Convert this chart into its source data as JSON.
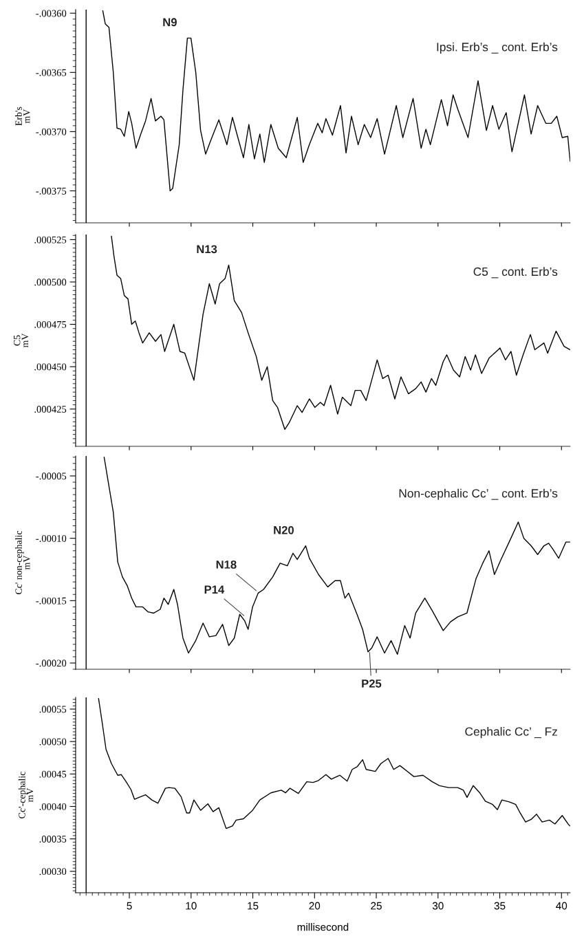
{
  "chart_data": [
    {
      "type": "line",
      "title": "Ipsi. Erb’s _ cont. Erb’s",
      "ylabel": "Erb's\nmV",
      "xlim": [
        0.65,
        40.7
      ],
      "xticks": [
        5,
        10,
        15,
        20,
        25,
        30,
        35,
        40
      ],
      "tick_labels": "y",
      "ylim": [
        -0.003777,
        -0.003597
      ],
      "yticks": [
        {
          "value": -0.0036,
          "label": "-.00360"
        },
        {
          "value": -0.00365,
          "label": "-.00365"
        },
        {
          "value": -0.0037,
          "label": "-.00370"
        },
        {
          "value": -0.00375,
          "label": "-.00375"
        }
      ],
      "annotations": [
        {
          "text": "N9",
          "x": 9.8,
          "y": -0.003621
        }
      ],
      "x": [
        1.5,
        1.5,
        2.0,
        2.85,
        3.05,
        3.35,
        3.7,
        4.0,
        4.3,
        4.59,
        4.95,
        5.19,
        5.54,
        5.93,
        6.31,
        6.76,
        7.11,
        7.56,
        7.8,
        8.3,
        8.51,
        9.04,
        9.34,
        9.7,
        9.99,
        10.38,
        10.77,
        11.18,
        11.57,
        12.25,
        12.9,
        13.35,
        13.79,
        14.24,
        14.68,
        15.13,
        15.57,
        15.93,
        16.46,
        17.06,
        17.71,
        18.6,
        19.08,
        19.58,
        20.26,
        20.62,
        20.92,
        21.45,
        22.1,
        22.55,
        22.99,
        23.53,
        24.03,
        24.54,
        25.07,
        25.67,
        26.62,
        27.15,
        27.98,
        28.63,
        29.02,
        29.38,
        30.27,
        30.77,
        31.22,
        31.6,
        32.43,
        33.24,
        33.92,
        34.42,
        34.93,
        35.52,
        35.99,
        37.0,
        37.54,
        38.07,
        38.73,
        39.17,
        39.62,
        40.06,
        40.51,
        40.7
      ],
      "series": [
        {
          "color": "#000000",
          "values": [
            -0.003777,
            -0.003597,
            null,
            -0.003598,
            -0.003609,
            -0.003612,
            -0.00365,
            -0.003697,
            -0.003698,
            -0.003704,
            -0.003683,
            -0.003693,
            -0.003714,
            -0.003702,
            -0.003691,
            -0.003672,
            -0.003691,
            -0.003687,
            -0.00369,
            -0.00375,
            -0.003748,
            -0.003711,
            -0.003665,
            -0.003621,
            -0.003621,
            -0.00365,
            -0.003699,
            -0.003719,
            -0.003708,
            -0.00369,
            -0.003711,
            -0.003688,
            -0.003705,
            -0.003722,
            -0.003694,
            -0.003723,
            -0.003702,
            -0.003726,
            -0.003694,
            -0.003714,
            -0.003722,
            -0.003688,
            -0.003726,
            -0.003711,
            -0.003693,
            -0.003701,
            -0.003689,
            -0.003703,
            -0.003678,
            -0.003718,
            -0.003687,
            -0.003711,
            -0.003694,
            -0.003705,
            -0.003689,
            -0.003719,
            -0.003678,
            -0.003705,
            -0.003672,
            -0.003714,
            -0.003698,
            -0.003711,
            -0.003673,
            -0.003695,
            -0.003669,
            -0.003681,
            -0.003705,
            -0.003657,
            -0.003699,
            -0.003678,
            -0.003698,
            -0.003684,
            -0.003717,
            -0.003669,
            -0.003702,
            -0.003678,
            -0.003693,
            -0.003693,
            -0.003687,
            -0.003705,
            -0.003704,
            -0.003725
          ]
        }
      ]
    },
    {
      "type": "line",
      "title": "C5 _ cont. Erb’s",
      "ylabel": "C5\nmV",
      "xlim": [
        0.65,
        40.7
      ],
      "xticks": [
        5,
        10,
        15,
        20,
        25,
        30,
        35,
        40
      ],
      "tick_labels": "y",
      "ylim": [
        0.000403,
        0.000528
      ],
      "yticks": [
        {
          "value": 0.000425,
          "label": ".000425"
        },
        {
          "value": 0.00045,
          "label": ".000450"
        },
        {
          "value": 0.000475,
          "label": ".000475"
        },
        {
          "value": 0.0005,
          "label": ".000500"
        },
        {
          "value": 0.000525,
          "label": ".000525"
        }
      ],
      "annotations": [
        {
          "text": "N13",
          "x": 13.05,
          "y": 0.00051
        }
      ],
      "x": [
        1.5,
        1.5,
        2.0,
        3.55,
        3.76,
        4.0,
        4.3,
        4.59,
        4.89,
        5.19,
        5.48,
        5.78,
        6.08,
        6.61,
        7.12,
        7.56,
        7.86,
        8.6,
        9.1,
        9.49,
        10.23,
        10.97,
        11.48,
        11.95,
        12.31,
        12.75,
        13.05,
        13.5,
        14.09,
        14.62,
        15.28,
        15.72,
        16.17,
        16.61,
        17.0,
        17.59,
        17.95,
        18.6,
        18.99,
        19.58,
        20.03,
        20.47,
        20.77,
        21.3,
        21.87,
        22.25,
        22.94,
        23.29,
        23.74,
        24.18,
        25.07,
        25.52,
        25.96,
        26.5,
        27.0,
        27.6,
        28.19,
        28.63,
        29.02,
        29.47,
        29.82,
        30.42,
        30.71,
        31.25,
        31.75,
        32.2,
        32.64,
        33.03,
        33.53,
        34.13,
        35.02,
        35.46,
        35.91,
        36.35,
        36.89,
        37.48,
        37.84,
        38.58,
        38.88,
        39.56,
        40.21,
        40.7
      ],
      "series": [
        {
          "color": "#000000",
          "values": [
            0.000403,
            0.000528,
            null,
            0.000527,
            0.000515,
            0.000504,
            0.000502,
            0.000492,
            0.00049,
            0.000475,
            0.000477,
            0.00047,
            0.000464,
            0.00047,
            0.000465,
            0.000469,
            0.000459,
            0.000475,
            0.000459,
            0.000458,
            0.000442,
            0.000481,
            0.000499,
            0.000487,
            0.000499,
            0.000502,
            0.00051,
            0.000489,
            0.000482,
            0.00047,
            0.000456,
            0.000442,
            0.00045,
            0.00043,
            0.000426,
            0.000413,
            0.000417,
            0.000427,
            0.000423,
            0.000431,
            0.000426,
            0.000429,
            0.000427,
            0.000439,
            0.000422,
            0.000432,
            0.000427,
            0.000436,
            0.000436,
            0.00043,
            0.000454,
            0.000443,
            0.000445,
            0.000431,
            0.000444,
            0.000434,
            0.000437,
            0.000441,
            0.000435,
            0.000443,
            0.000439,
            0.000453,
            0.000457,
            0.000448,
            0.000444,
            0.000456,
            0.000448,
            0.000457,
            0.000446,
            0.000455,
            0.000461,
            0.000454,
            0.000459,
            0.000445,
            0.000457,
            0.000469,
            0.00046,
            0.000464,
            0.000458,
            0.000471,
            0.000462,
            0.00046
          ]
        }
      ]
    },
    {
      "type": "line",
      "title": "Non-cephalic Cc’ _ cont. Erb’s",
      "ylabel": "Cc' non-cephalic\nmV",
      "xlim": [
        0.65,
        40.7
      ],
      "xticks": [
        5,
        10,
        15,
        20,
        25,
        30,
        35,
        40
      ],
      "tick_labels": "y",
      "ylim": [
        -0.000205,
        -3.4e-05
      ],
      "yticks": [
        {
          "value": -0.0002,
          "label": "-.00020"
        },
        {
          "value": -0.00015,
          "label": "-.00015"
        },
        {
          "value": -0.0001,
          "label": "-.00010"
        },
        {
          "value": -5e-05,
          "label": "-.00005"
        }
      ],
      "annotations": [
        {
          "text": "P14",
          "x": 14.4,
          "y": -0.000163
        },
        {
          "text": "N18",
          "x": 15.4,
          "y": -0.000143
        },
        {
          "text": "N20",
          "x": 19.28,
          "y": -0.0001062
        },
        {
          "text": "P25",
          "x": 24.45,
          "y": -0.00019
        }
      ],
      "x": [
        1.5,
        1.5,
        2.0,
        2.96,
        3.26,
        3.7,
        4.06,
        4.44,
        4.83,
        5.19,
        5.54,
        6.08,
        6.52,
        6.97,
        7.5,
        7.8,
        8.15,
        8.6,
        8.9,
        9.34,
        9.79,
        10.38,
        10.97,
        11.48,
        12.01,
        12.55,
        13.05,
        13.5,
        13.94,
        14.33,
        14.62,
        14.98,
        15.43,
        15.87,
        16.61,
        17.21,
        17.8,
        18.25,
        18.6,
        19.28,
        19.58,
        20.32,
        21.07,
        21.66,
        22.1,
        22.46,
        22.76,
        23.44,
        23.89,
        24.33,
        24.63,
        25.07,
        25.67,
        26.2,
        26.71,
        27.3,
        27.74,
        28.19,
        28.93,
        29.53,
        30.42,
        31.01,
        31.6,
        32.34,
        33.09,
        33.62,
        34.13,
        34.57,
        35.1,
        35.76,
        36.5,
        36.95,
        37.54,
        38.07,
        38.58,
        38.96,
        39.32,
        39.77,
        40.36,
        40.7
      ],
      "series": [
        {
          "color": "#000000",
          "values": [
            -0.000205,
            -3.4e-05,
            null,
            -3.5e-05,
            -5.3e-05,
            -7.9e-05,
            -0.000119,
            -0.000131,
            -0.000138,
            -0.000148,
            -0.000155,
            -0.000155,
            -0.000159,
            -0.00016,
            -0.000157,
            -0.000148,
            -0.000153,
            -0.000141,
            -0.000153,
            -0.00018,
            -0.000192,
            -0.000182,
            -0.000168,
            -0.000179,
            -0.000178,
            -0.000169,
            -0.000186,
            -0.00018,
            -0.000161,
            -0.000166,
            -0.000173,
            -0.000155,
            -0.000144,
            -0.000141,
            -0.000131,
            -0.00012,
            -0.000122,
            -0.000112,
            -0.000117,
            -0.000106,
            -0.000116,
            -0.000129,
            -0.000139,
            -0.000134,
            -0.000134,
            -0.000148,
            -0.000144,
            -0.000161,
            -0.000173,
            -0.000191,
            -0.000188,
            -0.000179,
            -0.000192,
            -0.000182,
            -0.000193,
            -0.00017,
            -0.00018,
            -0.00016,
            -0.000148,
            -0.000158,
            -0.000174,
            -0.000167,
            -0.000163,
            -0.00016,
            -0.000132,
            -0.00012,
            -0.00011,
            -0.000129,
            -0.000117,
            -0.000103,
            -8.7e-05,
            -0.0001,
            -0.000106,
            -0.000113,
            -0.000106,
            -0.000104,
            -0.000109,
            -0.000116,
            -0.000103,
            -0.000103
          ]
        }
      ]
    },
    {
      "type": "line",
      "title": "Cephalic Cc’ _ Fz",
      "ylabel": "Cc'-cephalic\nmV",
      "xlabel": "millisecond",
      "xlim": [
        0.65,
        40.7
      ],
      "xticks": [
        5,
        10,
        15,
        20,
        25,
        30,
        35,
        40
      ],
      "ylim": [
        0.000267,
        0.000568
      ],
      "yticks": [
        {
          "value": 0.0003,
          "label": ".00030"
        },
        {
          "value": 0.00035,
          "label": ".00035"
        },
        {
          "value": 0.0004,
          "label": ".00040"
        },
        {
          "value": 0.00045,
          "label": ".00045"
        },
        {
          "value": 0.0005,
          "label": ".00050"
        },
        {
          "value": 0.00055,
          "label": ".00055"
        }
      ],
      "x": [
        1.5,
        1.5,
        2.0,
        2.51,
        2.81,
        3.11,
        3.55,
        4.06,
        4.35,
        4.74,
        5.13,
        5.42,
        5.78,
        6.31,
        6.82,
        7.32,
        7.92,
        8.21,
        8.69,
        9.19,
        9.64,
        9.88,
        10.23,
        10.77,
        11.36,
        11.78,
        12.25,
        12.84,
        13.35,
        13.65,
        14.24,
        14.98,
        15.57,
        16.46,
        17.3,
        17.65,
        18.01,
        18.69,
        19.37,
        19.88,
        20.32,
        20.92,
        21.36,
        22.05,
        22.64,
        23.05,
        23.44,
        23.89,
        24.18,
        24.92,
        25.37,
        25.96,
        26.41,
        26.91,
        27.51,
        28.04,
        28.78,
        29.53,
        30.12,
        30.86,
        31.6,
        32.05,
        32.35,
        32.85,
        33.38,
        33.83,
        34.42,
        34.81,
        35.17,
        35.76,
        36.29,
        36.65,
        37.09,
        37.54,
        37.98,
        38.43,
        39.02,
        39.47,
        40.06,
        40.57,
        40.7
      ],
      "series": [
        {
          "color": "#000000",
          "values": [
            0.000267,
            0.000568,
            null,
            0.000566,
            0.000528,
            0.000488,
            0.000466,
            0.000448,
            0.000449,
            0.000438,
            0.000426,
            0.000411,
            0.000414,
            0.000418,
            0.00041,
            0.000405,
            0.000428,
            0.000429,
            0.000428,
            0.000415,
            0.00039,
            0.00039,
            0.00041,
            0.000394,
            0.000404,
            0.000392,
            0.000398,
            0.000366,
            0.00037,
            0.000379,
            0.000381,
            0.000394,
            0.00041,
            0.000421,
            0.000425,
            0.000421,
            0.000428,
            0.00042,
            0.000438,
            0.000437,
            0.00044,
            0.000449,
            0.000442,
            0.000448,
            0.000439,
            0.000457,
            0.000461,
            0.000472,
            0.000457,
            0.000454,
            0.000466,
            0.000474,
            0.000457,
            0.000463,
            0.000454,
            0.000446,
            0.000448,
            0.000438,
            0.000432,
            0.000429,
            0.000429,
            0.000425,
            0.000414,
            0.000432,
            0.000421,
            0.000408,
            0.000403,
            0.000395,
            0.00041,
            0.000407,
            0.000403,
            0.00039,
            0.000376,
            0.00038,
            0.000388,
            0.000376,
            0.000379,
            0.000373,
            0.000386,
            0.000372,
            0.00037
          ]
        }
      ]
    }
  ]
}
